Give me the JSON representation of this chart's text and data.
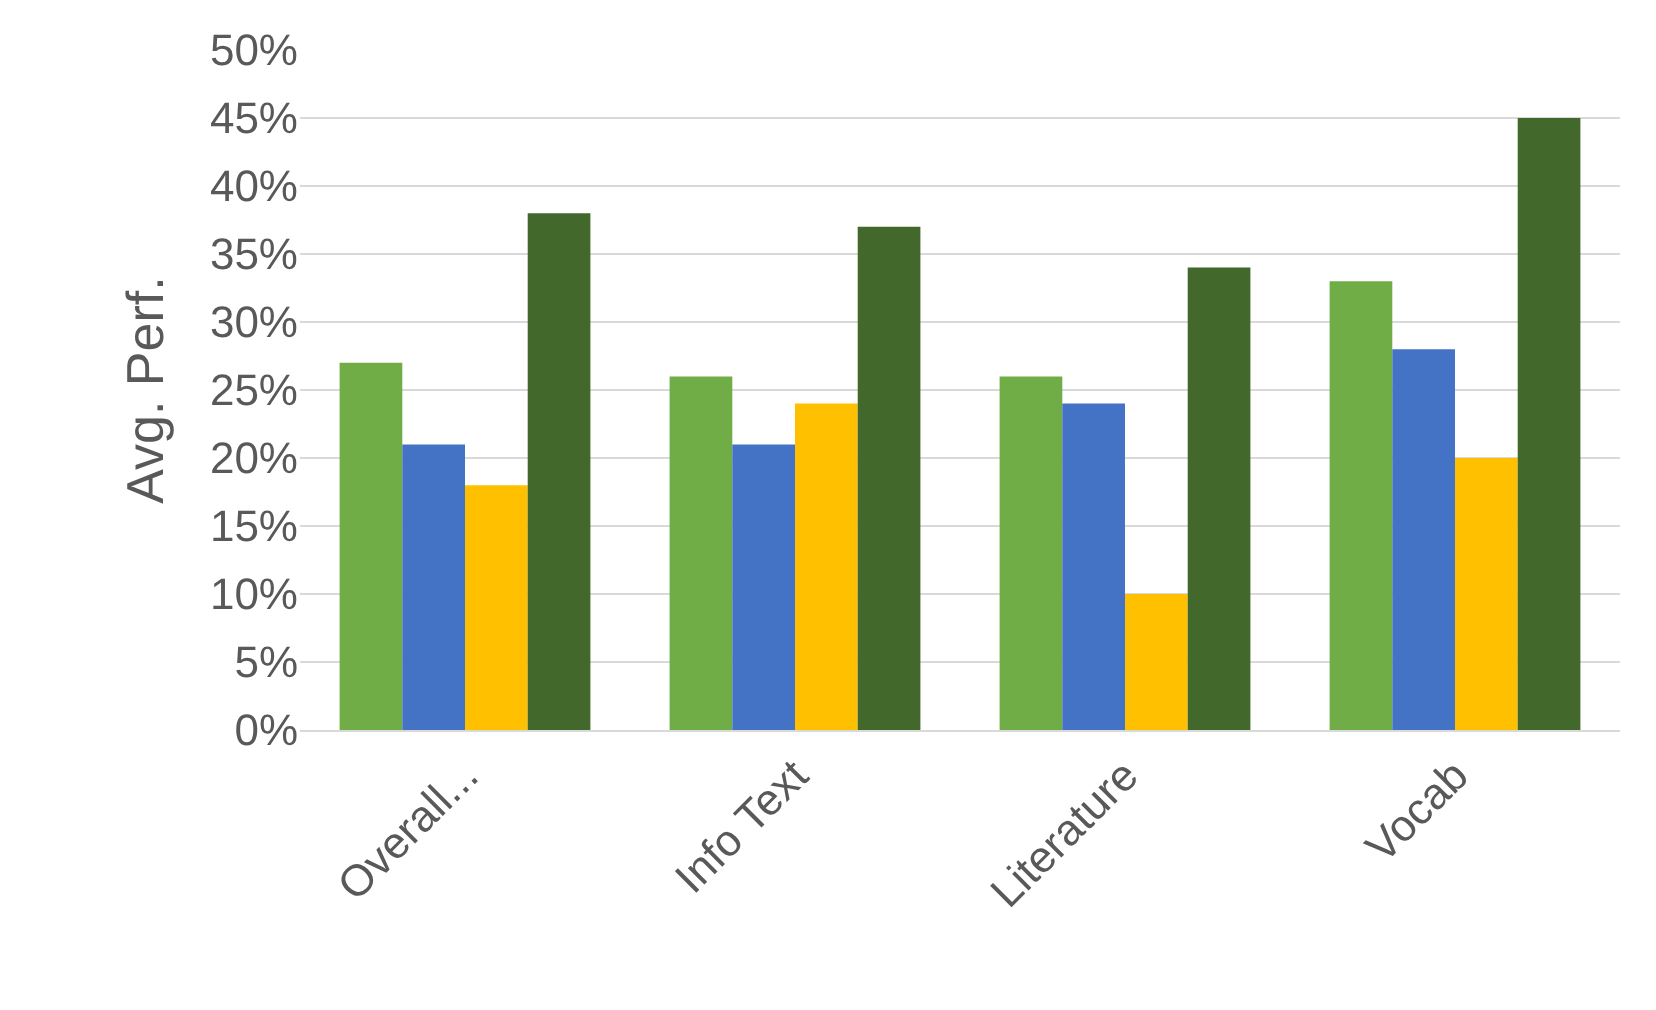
{
  "chart_data": {
    "type": "bar",
    "ylabel": "Avg. Perf.",
    "categories": [
      "Overall...",
      "Info Text",
      "Literature",
      "Vocab"
    ],
    "series": [
      {
        "color": "#70ad47",
        "values": [
          27,
          26,
          26,
          33
        ]
      },
      {
        "color": "#4472c4",
        "values": [
          21,
          21,
          24,
          28
        ]
      },
      {
        "color": "#ffc000",
        "values": [
          18,
          24,
          10,
          20
        ]
      },
      {
        "color": "#43682b",
        "values": [
          38,
          37,
          34,
          45
        ]
      }
    ],
    "ylim": [
      0,
      50
    ],
    "yticks": [
      {
        "value": 0,
        "label": "0%"
      },
      {
        "value": 5,
        "label": "5%"
      },
      {
        "value": 10,
        "label": "10%"
      },
      {
        "value": 15,
        "label": "15%"
      },
      {
        "value": 20,
        "label": "20%"
      },
      {
        "value": 25,
        "label": "25%"
      },
      {
        "value": 30,
        "label": "30%"
      },
      {
        "value": 35,
        "label": "35%"
      },
      {
        "value": 40,
        "label": "40%"
      },
      {
        "value": 45,
        "label": "45%"
      },
      {
        "value": 50,
        "label": "50%"
      }
    ],
    "grid": "y"
  }
}
